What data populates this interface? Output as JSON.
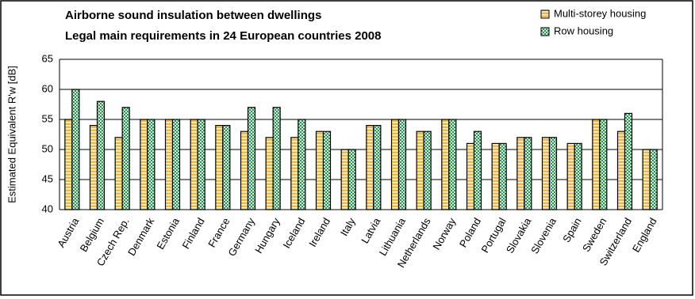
{
  "chart_data": {
    "type": "bar",
    "title": "Airborne sound insulation between dwellings",
    "subtitle": "Legal main requirements in 24 European countries 2008",
    "y_label": "Estimated Equivalent R'w [dB]",
    "categories": [
      "Austria",
      "Belgium",
      "Czech Rep.",
      "Denmark",
      "Estonia",
      "Finland",
      "France",
      "Germany",
      "Hungary",
      "Iceland",
      "Ireland",
      "Italy",
      "Latvia",
      "Lithuania",
      "Netherlands",
      "Norway",
      "Poland",
      "Portugal",
      "Slovakia",
      "Slovenia",
      "Spain",
      "Sweden",
      "Switzerland",
      "England"
    ],
    "series": [
      {
        "name": "Multi-storey housing",
        "color": "#f3b83a",
        "values": [
          55,
          54,
          52,
          55,
          55,
          55,
          54,
          53,
          52,
          52,
          53,
          50,
          54,
          55,
          53,
          55,
          51,
          51,
          52,
          52,
          51,
          55,
          53,
          50
        ]
      },
      {
        "name": "Row housing",
        "color": "#1f8a4c",
        "values": [
          60,
          58,
          57,
          55,
          55,
          55,
          54,
          57,
          57,
          55,
          53,
          50,
          54,
          55,
          53,
          55,
          53,
          51,
          52,
          52,
          51,
          55,
          56,
          50
        ]
      }
    ],
    "ylim": [
      40,
      65
    ],
    "yticks": [
      40,
      45,
      50,
      55,
      60,
      65
    ],
    "grid": true,
    "legend": "top-right"
  }
}
